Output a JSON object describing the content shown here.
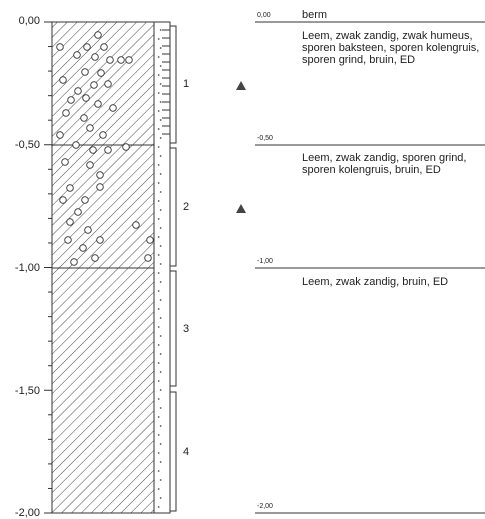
{
  "y_axis": {
    "ticks": [
      "0,00",
      "-0,50",
      "-1,00",
      "-1,50",
      "-2,00"
    ]
  },
  "samples": [
    "1",
    "2",
    "3",
    "4"
  ],
  "layers": [
    {
      "depth": "0,00",
      "title": "berm",
      "description": "Leem, zwak zandig, zwak humeus, sporen baksteen, sporen kolengruis, sporen grind, bruin, ED"
    },
    {
      "depth": "-0,50",
      "title": "",
      "description": "Leem, zwak zandig, sporen grind, sporen kolengruis, bruin, ED"
    },
    {
      "depth": "-1,00",
      "title": "",
      "description": "Leem, zwak zandig, bruin, ED"
    },
    {
      "depth": "-2,00",
      "title": "",
      "description": ""
    }
  ],
  "water_level_marks": [
    "triangle-marker",
    "triangle-marker"
  ],
  "colors": {
    "line": "#333333",
    "marker": "#444444"
  }
}
